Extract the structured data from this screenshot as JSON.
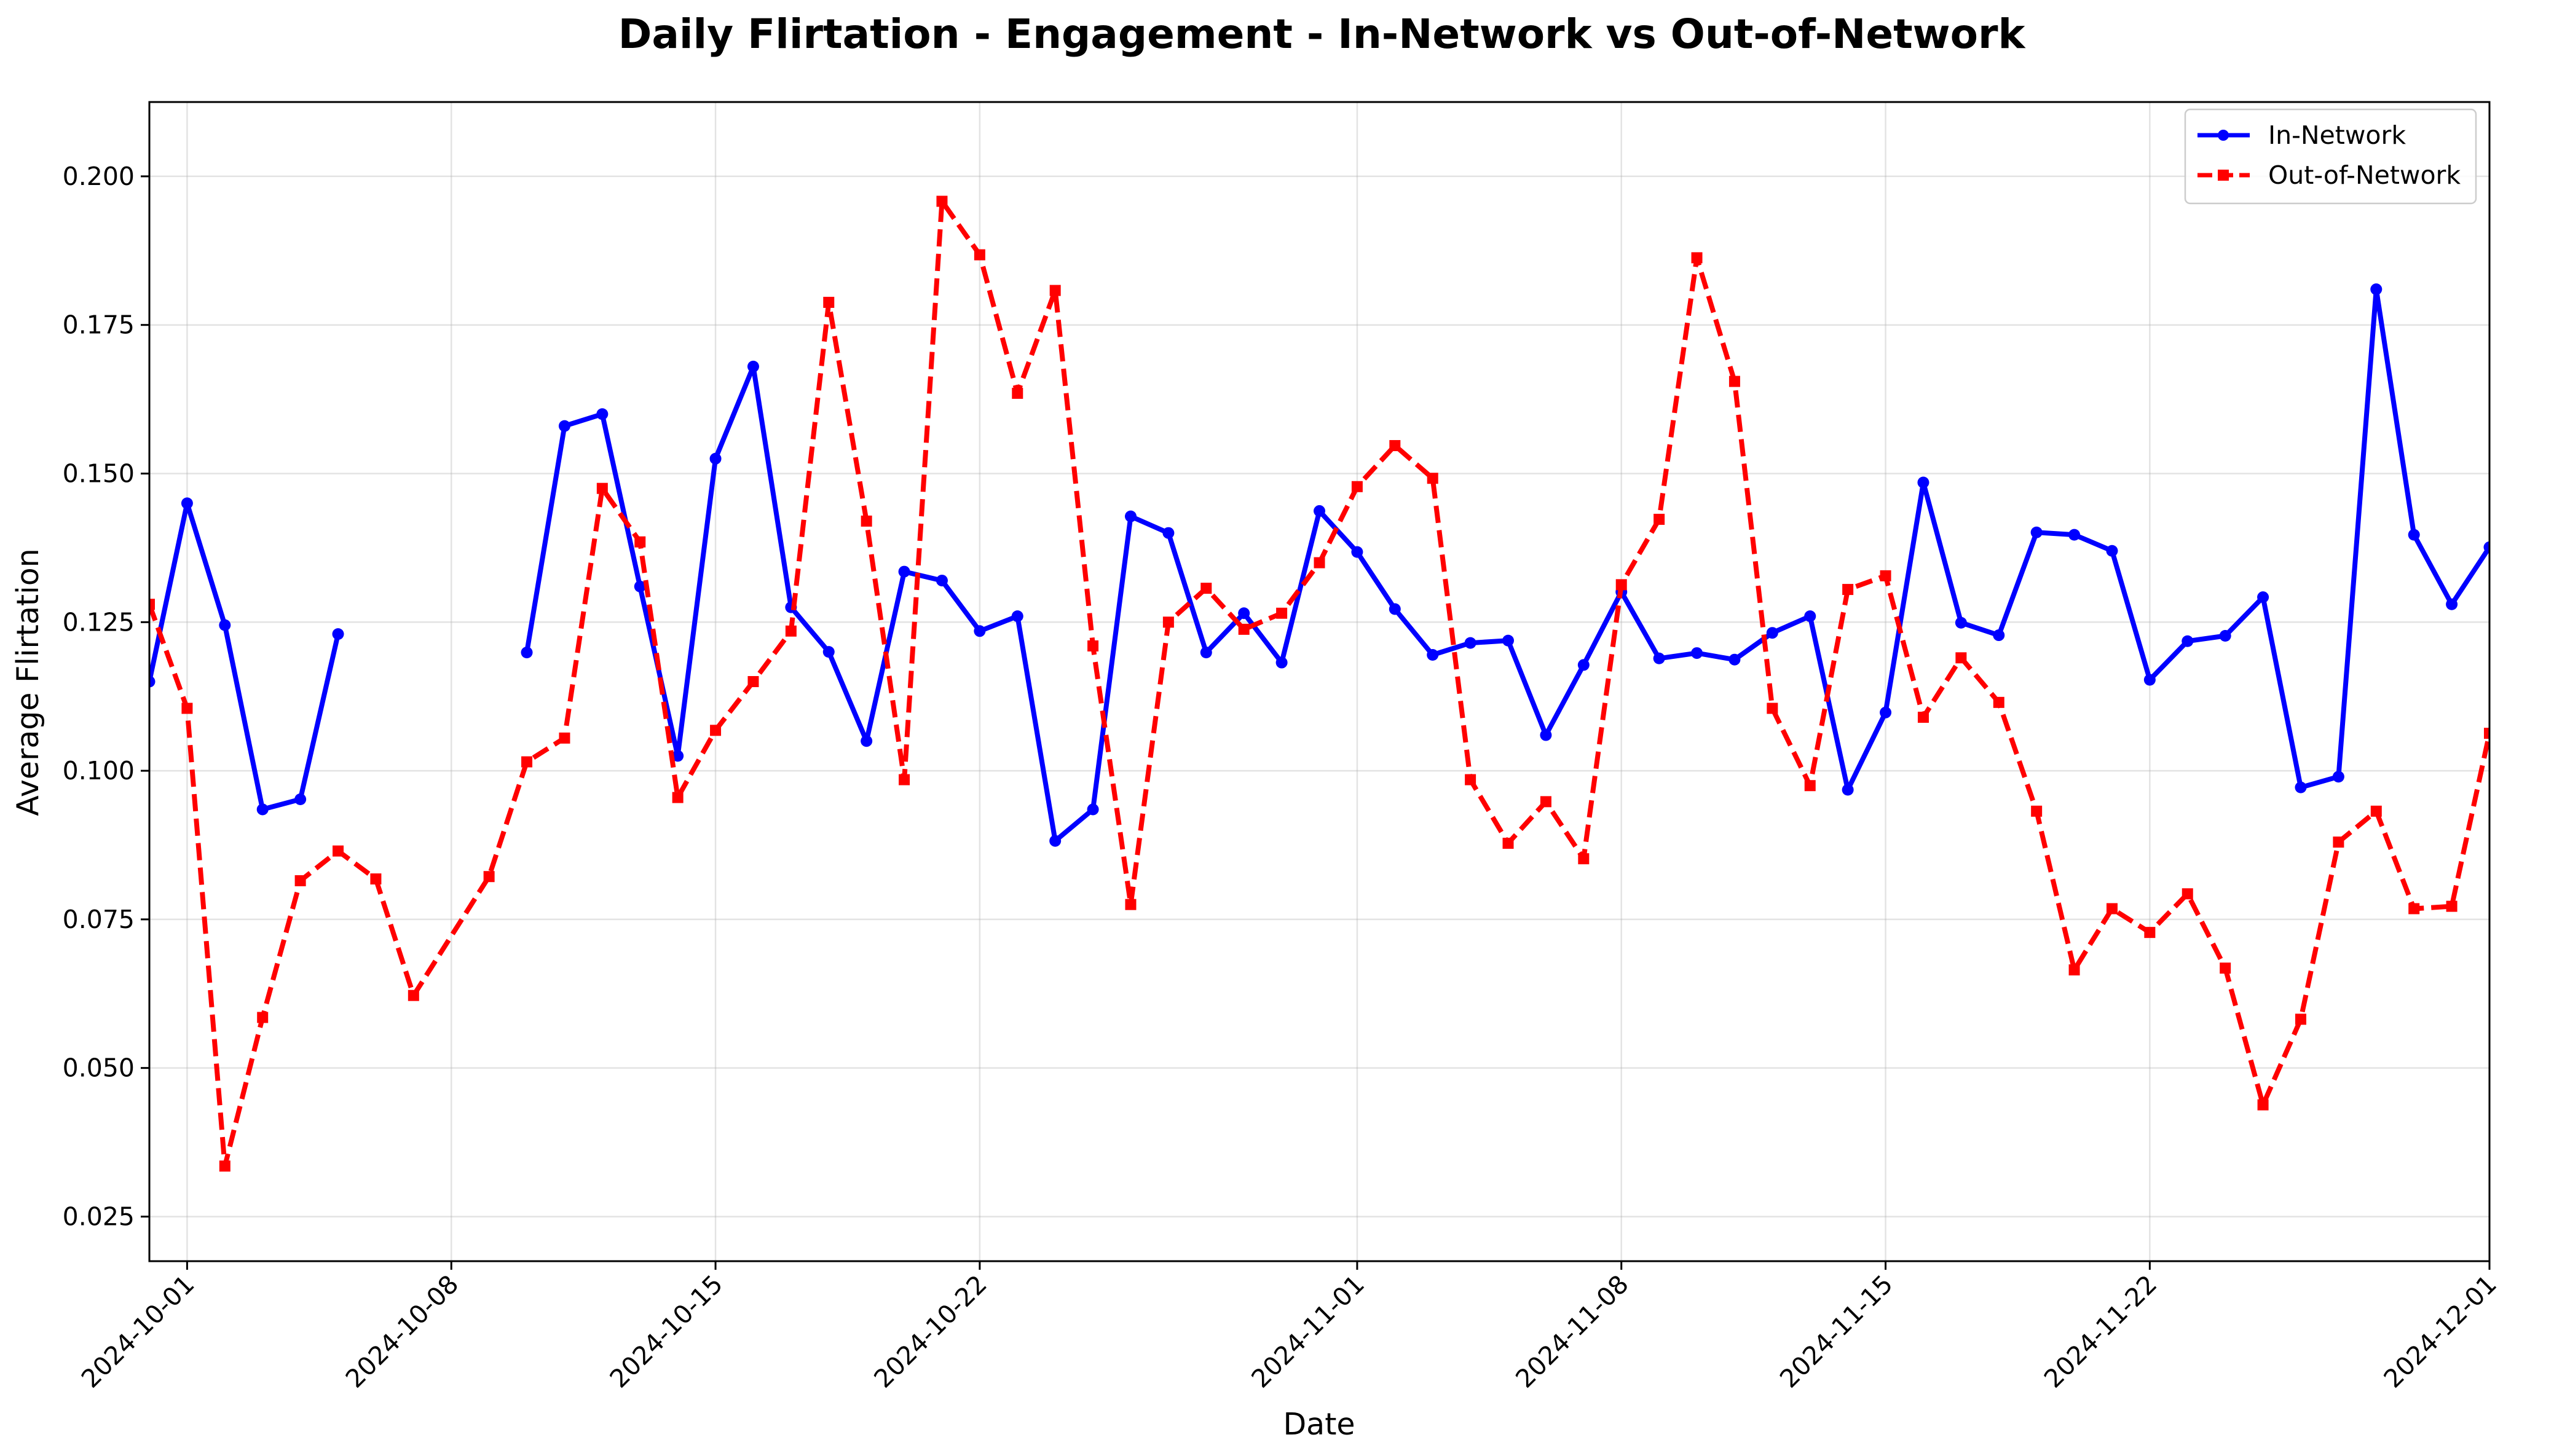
{
  "chart_data": {
    "type": "line",
    "title": "Daily Flirtation - Engagement - In-Network vs Out-of-Network",
    "xlabel": "Date",
    "ylabel": "Average Flirtation",
    "x_axis": {
      "type": "date",
      "range": [
        "2024-09-30",
        "2024-12-01"
      ],
      "ticks": [
        "2024-10-01",
        "2024-10-08",
        "2024-10-15",
        "2024-10-22",
        "2024-11-01",
        "2024-11-08",
        "2024-11-15",
        "2024-11-22",
        "2024-12-01"
      ]
    },
    "y_axis": {
      "range": [
        0.0175,
        0.2125
      ],
      "ticks": [
        "0.025",
        "0.050",
        "0.075",
        "0.100",
        "0.125",
        "0.150",
        "0.175",
        "0.200"
      ]
    },
    "grid": true,
    "legend_position": "top-right",
    "series": [
      {
        "name": "In-Network",
        "color": "#0000ff",
        "line_style": "solid",
        "marker": "circle",
        "points": [
          [
            "2024-09-30",
            0.115
          ],
          [
            "2024-10-01",
            0.145
          ],
          [
            "2024-10-02",
            0.1245
          ],
          [
            "2024-10-03",
            0.0935
          ],
          [
            "2024-10-04",
            0.0952
          ],
          [
            "2024-10-05",
            0.123
          ],
          null,
          [
            "2024-10-10",
            0.1199
          ],
          [
            "2024-10-11",
            0.158
          ],
          [
            "2024-10-12",
            0.16
          ],
          [
            "2024-10-13",
            0.131
          ],
          [
            "2024-10-14",
            0.1025
          ],
          [
            "2024-10-15",
            0.1525
          ],
          [
            "2024-10-16",
            0.168
          ],
          [
            "2024-10-17",
            0.1275
          ],
          [
            "2024-10-18",
            0.12
          ],
          [
            "2024-10-19",
            0.105
          ],
          [
            "2024-10-20",
            0.1335
          ],
          [
            "2024-10-21",
            0.132
          ],
          [
            "2024-10-22",
            0.1235
          ],
          [
            "2024-10-23",
            0.126
          ],
          [
            "2024-10-24",
            0.0882
          ],
          [
            "2024-10-25",
            0.0935
          ],
          [
            "2024-10-26",
            0.1428
          ],
          [
            "2024-10-27",
            0.14
          ],
          [
            "2024-10-28",
            0.1199
          ],
          [
            "2024-10-29",
            0.1265
          ],
          [
            "2024-10-30",
            0.1182
          ],
          [
            "2024-10-31",
            0.1437
          ],
          [
            "2024-11-01",
            0.1368
          ],
          [
            "2024-11-02",
            0.1272
          ],
          [
            "2024-11-03",
            0.1195
          ],
          [
            "2024-11-04",
            0.1215
          ],
          [
            "2024-11-05",
            0.1219
          ],
          [
            "2024-11-06",
            0.106
          ],
          [
            "2024-11-07",
            0.1178
          ],
          [
            "2024-11-08",
            0.1301
          ],
          [
            "2024-11-09",
            0.1189
          ],
          [
            "2024-11-10",
            0.1198
          ],
          [
            "2024-11-11",
            0.1187
          ],
          [
            "2024-11-12",
            0.1232
          ],
          [
            "2024-11-13",
            0.126
          ],
          [
            "2024-11-14",
            0.0968
          ],
          [
            "2024-11-15",
            0.1098
          ],
          [
            "2024-11-16",
            0.1485
          ],
          [
            "2024-11-17",
            0.1249
          ],
          [
            "2024-11-18",
            0.1228
          ],
          [
            "2024-11-19",
            0.1401
          ],
          [
            "2024-11-20",
            0.1397
          ],
          [
            "2024-11-21",
            0.137
          ],
          [
            "2024-11-22",
            0.1153
          ],
          [
            "2024-11-23",
            0.1218
          ],
          [
            "2024-11-24",
            0.1227
          ],
          [
            "2024-11-25",
            0.1292
          ],
          [
            "2024-11-26",
            0.0972
          ],
          [
            "2024-11-27",
            0.099
          ],
          [
            "2024-11-28",
            0.181
          ],
          [
            "2024-11-29",
            0.1397
          ],
          [
            "2024-11-30",
            0.128
          ],
          [
            "2024-12-01",
            0.1376
          ]
        ]
      },
      {
        "name": "Out-of-Network",
        "color": "#ff0000",
        "line_style": "dashed",
        "marker": "square",
        "points": [
          [
            "2024-09-30",
            0.128
          ],
          [
            "2024-10-01",
            0.1105
          ],
          [
            "2024-10-02",
            0.0335
          ],
          [
            "2024-10-03",
            0.0585
          ],
          [
            "2024-10-04",
            0.0815
          ],
          [
            "2024-10-05",
            0.0865
          ],
          [
            "2024-10-06",
            0.0818
          ],
          [
            "2024-10-07",
            0.0622
          ],
          [
            "2024-10-09",
            0.0822
          ],
          [
            "2024-10-10",
            0.1015
          ],
          [
            "2024-10-11",
            0.1055
          ],
          [
            "2024-10-12",
            0.1475
          ],
          [
            "2024-10-13",
            0.1385
          ],
          [
            "2024-10-14",
            0.0955
          ],
          [
            "2024-10-15",
            0.1068
          ],
          [
            "2024-10-16",
            0.115
          ],
          [
            "2024-10-17",
            0.1235
          ],
          [
            "2024-10-18",
            0.1788
          ],
          [
            "2024-10-19",
            0.142
          ],
          [
            "2024-10-20",
            0.0985
          ],
          [
            "2024-10-21",
            0.1958
          ],
          [
            "2024-10-22",
            0.1868
          ],
          [
            "2024-10-23",
            0.1635
          ],
          [
            "2024-10-24",
            0.1808
          ],
          [
            "2024-10-25",
            0.121
          ],
          [
            "2024-10-26",
            0.0775
          ],
          [
            "2024-10-27",
            0.125
          ],
          [
            "2024-10-28",
            0.1307
          ],
          [
            "2024-10-29",
            0.1238
          ],
          [
            "2024-10-30",
            0.1265
          ],
          [
            "2024-10-31",
            0.135
          ],
          [
            "2024-11-01",
            0.1478
          ],
          [
            "2024-11-02",
            0.1547
          ],
          [
            "2024-11-03",
            0.1492
          ],
          [
            "2024-11-04",
            0.0985
          ],
          [
            "2024-11-05",
            0.0878
          ],
          [
            "2024-11-06",
            0.0948
          ],
          [
            "2024-11-07",
            0.0852
          ],
          [
            "2024-11-08",
            0.1313
          ],
          [
            "2024-11-09",
            0.1423
          ],
          [
            "2024-11-10",
            0.1863
          ],
          [
            "2024-11-11",
            0.1655
          ],
          [
            "2024-11-12",
            0.1105
          ],
          [
            "2024-11-13",
            0.0975
          ],
          [
            "2024-11-14",
            0.1305
          ],
          [
            "2024-11-15",
            0.1328
          ],
          [
            "2024-11-16",
            0.109
          ],
          [
            "2024-11-17",
            0.119
          ],
          [
            "2024-11-18",
            0.1115
          ],
          [
            "2024-11-19",
            0.0932
          ],
          [
            "2024-11-20",
            0.0665
          ],
          [
            "2024-11-21",
            0.0768
          ],
          [
            "2024-11-22",
            0.0728
          ],
          [
            "2024-11-23",
            0.0793
          ],
          [
            "2024-11-24",
            0.0668
          ],
          [
            "2024-11-25",
            0.0438
          ],
          [
            "2024-11-26",
            0.0582
          ],
          [
            "2024-11-27",
            0.088
          ],
          [
            "2024-11-28",
            0.0932
          ],
          [
            "2024-11-29",
            0.0768
          ],
          [
            "2024-11-30",
            0.0772
          ],
          [
            "2024-12-01",
            0.1063
          ]
        ]
      }
    ]
  }
}
